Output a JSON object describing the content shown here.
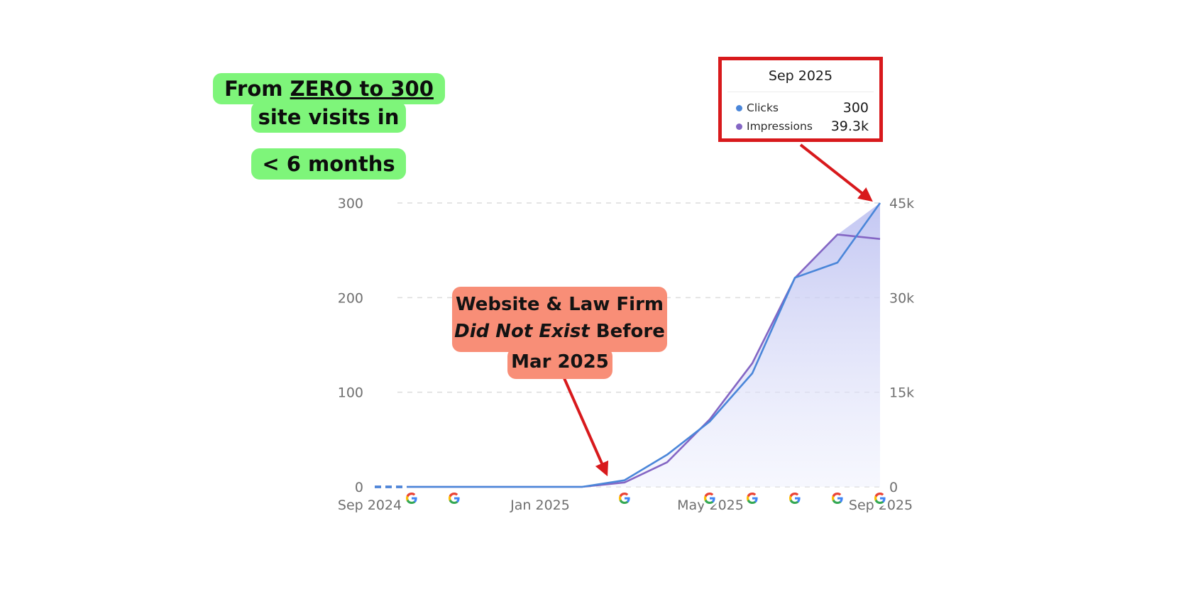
{
  "callouts": {
    "headline": {
      "line1_prefix": "From ",
      "line1_underlined": "ZERO to 300",
      "line2": "site visits in",
      "line3": "< 6 months",
      "bg_color": "#7ef57a"
    },
    "annotation": {
      "line1": "Website & Law Firm",
      "line2_italic": "Did Not Exist",
      "line2_rest": " Before",
      "line3": "Mar 2025",
      "bg_color": "#f88e77"
    }
  },
  "tooltip": {
    "title": "Sep 2025",
    "rows": [
      {
        "label": "Clicks",
        "value": "300",
        "color": "#4a86d9"
      },
      {
        "label": "Impressions",
        "value": "39.3k",
        "color": "#8466c4"
      }
    ],
    "border_color": "#d8191c"
  },
  "chart_data": {
    "type": "line",
    "title": "",
    "xlabel": "",
    "ylabel": "Clicks",
    "y2label": "Impressions",
    "x": [
      "Sep 2024",
      "Oct 2024",
      "Nov 2024",
      "Dec 2024",
      "Jan 2025",
      "Feb 2025",
      "Mar 2025",
      "Apr 2025",
      "May 2025",
      "Jun 2025",
      "Jul 2025",
      "Aug 2025",
      "Sep 2025"
    ],
    "x_tick_labels": [
      "Sep 2024",
      "Jan 2025",
      "May 2025",
      "Sep 2025"
    ],
    "series": [
      {
        "name": "Clicks",
        "axis": "left",
        "color": "#4a86d9",
        "values": [
          0,
          0,
          0,
          0,
          0,
          0,
          7,
          34,
          69,
          120,
          221,
          237,
          300
        ]
      },
      {
        "name": "Impressions",
        "axis": "right",
        "color": "#8466c4",
        "values": [
          0,
          0,
          0,
          0,
          0,
          0,
          700,
          3900,
          10700,
          19600,
          33100,
          40000,
          39300
        ]
      }
    ],
    "ylim": [
      0,
      300
    ],
    "y2lim": [
      0,
      45000
    ],
    "y_ticks": [
      "0",
      "100",
      "200",
      "300"
    ],
    "y2_ticks": [
      "0",
      "15k",
      "30k",
      "45k"
    ],
    "grid": true,
    "legend": "tooltip",
    "annotations": [
      "From ZERO to 300 site visits in < 6 months",
      "Website & Law Firm Did Not Exist Before Mar 2025",
      "Sep 2025: Clicks 300, Impressions 39.3k"
    ],
    "google_update_markers_x": [
      "Oct 2024",
      "Nov 2024",
      "Mar 2025",
      "May 2025",
      "Jun 2025",
      "Jul 2025",
      "Aug 2025",
      "Sep 2025"
    ]
  }
}
